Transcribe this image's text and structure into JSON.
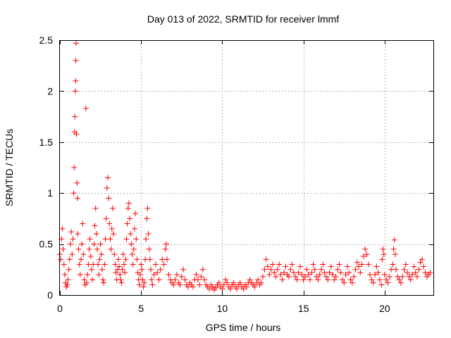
{
  "chart_data": {
    "type": "scatter",
    "title": "Day 013 of 2022, SRMTID for receiver lmmf",
    "xlabel": "GPS time / hours",
    "ylabel": "SRMTID / TECUs",
    "xlim": [
      0,
      23.0
    ],
    "ylim": [
      0,
      2.5
    ],
    "xticks": [
      0,
      5,
      10,
      15,
      20
    ],
    "xtick_labels": [
      "0",
      "5",
      "10",
      "15",
      "20"
    ],
    "yticks": [
      0,
      0.5,
      1,
      1.5,
      2,
      2.5
    ],
    "ytick_labels": [
      "0",
      "0.5",
      "1",
      "1.5",
      "2",
      "2.5"
    ],
    "grid": true,
    "marker": "+",
    "color": "#ff0000",
    "series": [
      {
        "name": "SRMTID",
        "points": [
          [
            0.0,
            0.4
          ],
          [
            0.05,
            0.35
          ],
          [
            0.1,
            0.55
          ],
          [
            0.15,
            0.65
          ],
          [
            0.2,
            0.45
          ],
          [
            0.25,
            0.3
          ],
          [
            0.3,
            0.2
          ],
          [
            0.35,
            0.12
          ],
          [
            0.4,
            0.08
          ],
          [
            0.45,
            0.1
          ],
          [
            0.5,
            0.15
          ],
          [
            0.55,
            0.25
          ],
          [
            0.6,
            0.35
          ],
          [
            0.65,
            0.5
          ],
          [
            0.7,
            0.62
          ],
          [
            0.75,
            0.4
          ],
          [
            0.8,
            0.55
          ],
          [
            0.85,
            1.0
          ],
          [
            0.88,
            1.25
          ],
          [
            0.9,
            1.6
          ],
          [
            0.92,
            1.75
          ],
          [
            0.95,
            2.0
          ],
          [
            0.97,
            2.1
          ],
          [
            0.98,
            2.3
          ],
          [
            1.0,
            2.47
          ],
          [
            1.02,
            1.58
          ],
          [
            1.05,
            1.1
          ],
          [
            1.08,
            0.95
          ],
          [
            1.1,
            0.6
          ],
          [
            1.15,
            0.45
          ],
          [
            1.2,
            0.3
          ],
          [
            1.25,
            0.2
          ],
          [
            1.3,
            0.35
          ],
          [
            1.35,
            0.5
          ],
          [
            1.4,
            0.7
          ],
          [
            1.45,
            0.4
          ],
          [
            1.5,
            0.15
          ],
          [
            1.55,
            0.1
          ],
          [
            1.6,
            1.83
          ],
          [
            1.65,
            0.12
          ],
          [
            1.7,
            0.2
          ],
          [
            1.75,
            0.3
          ],
          [
            1.8,
            0.45
          ],
          [
            1.85,
            0.55
          ],
          [
            1.9,
            0.38
          ],
          [
            1.95,
            0.25
          ],
          [
            2.0,
            0.15
          ],
          [
            2.05,
            0.3
          ],
          [
            2.1,
            0.5
          ],
          [
            2.15,
            0.68
          ],
          [
            2.2,
            0.85
          ],
          [
            2.25,
            0.6
          ],
          [
            2.3,
            0.45
          ],
          [
            2.35,
            0.3
          ],
          [
            2.4,
            0.2
          ],
          [
            2.45,
            0.35
          ],
          [
            2.5,
            0.5
          ],
          [
            2.55,
            0.4
          ],
          [
            2.6,
            0.25
          ],
          [
            2.65,
            0.15
          ],
          [
            2.7,
            0.12
          ],
          [
            2.75,
            0.3
          ],
          [
            2.8,
            0.55
          ],
          [
            2.85,
            0.75
          ],
          [
            2.9,
            1.05
          ],
          [
            2.95,
            1.15
          ],
          [
            3.0,
            0.95
          ],
          [
            3.05,
            0.7
          ],
          [
            3.1,
            0.55
          ],
          [
            3.15,
            0.45
          ],
          [
            3.2,
            0.65
          ],
          [
            3.25,
            0.85
          ],
          [
            3.3,
            0.6
          ],
          [
            3.35,
            0.4
          ],
          [
            3.4,
            0.3
          ],
          [
            3.45,
            0.22
          ],
          [
            3.5,
            0.15
          ],
          [
            3.55,
            0.25
          ],
          [
            3.6,
            0.35
          ],
          [
            3.65,
            0.28
          ],
          [
            3.7,
            0.2
          ],
          [
            3.75,
            0.15
          ],
          [
            3.8,
            0.12
          ],
          [
            3.85,
            0.25
          ],
          [
            3.9,
            0.4
          ],
          [
            3.95,
            0.3
          ],
          [
            4.0,
            0.22
          ],
          [
            4.05,
            0.35
          ],
          [
            4.1,
            0.55
          ],
          [
            4.15,
            0.7
          ],
          [
            4.2,
            0.85
          ],
          [
            4.25,
            0.9
          ],
          [
            4.3,
            0.75
          ],
          [
            4.35,
            0.6
          ],
          [
            4.4,
            0.5
          ],
          [
            4.45,
            0.4
          ],
          [
            4.5,
            0.3
          ],
          [
            4.55,
            0.45
          ],
          [
            4.6,
            0.65
          ],
          [
            4.65,
            0.8
          ],
          [
            4.7,
            0.55
          ],
          [
            4.75,
            0.35
          ],
          [
            4.8,
            0.22
          ],
          [
            4.85,
            0.15
          ],
          [
            4.9,
            0.1
          ],
          [
            4.95,
            0.2
          ],
          [
            5.0,
            0.3
          ],
          [
            5.05,
            0.25
          ],
          [
            5.1,
            0.15
          ],
          [
            5.15,
            0.08
          ],
          [
            5.2,
            0.12
          ],
          [
            5.25,
            0.35
          ],
          [
            5.3,
            0.55
          ],
          [
            5.35,
            0.75
          ],
          [
            5.4,
            0.85
          ],
          [
            5.45,
            0.6
          ],
          [
            5.5,
            0.45
          ],
          [
            5.55,
            0.35
          ],
          [
            5.6,
            0.25
          ],
          [
            5.65,
            0.15
          ],
          [
            5.7,
            0.1
          ],
          [
            5.8,
            0.2
          ],
          [
            5.9,
            0.3
          ],
          [
            6.0,
            0.22
          ],
          [
            6.1,
            0.15
          ],
          [
            6.2,
            0.25
          ],
          [
            6.3,
            0.35
          ],
          [
            6.4,
            0.3
          ],
          [
            6.5,
            0.45
          ],
          [
            6.55,
            0.5
          ],
          [
            6.6,
            0.35
          ],
          [
            6.7,
            0.2
          ],
          [
            6.8,
            0.15
          ],
          [
            6.9,
            0.12
          ],
          [
            7.0,
            0.1
          ],
          [
            7.1,
            0.15
          ],
          [
            7.2,
            0.2
          ],
          [
            7.3,
            0.12
          ],
          [
            7.4,
            0.1
          ],
          [
            7.5,
            0.18
          ],
          [
            7.6,
            0.25
          ],
          [
            7.7,
            0.15
          ],
          [
            7.8,
            0.1
          ],
          [
            7.9,
            0.08
          ],
          [
            8.0,
            0.12
          ],
          [
            8.1,
            0.1
          ],
          [
            8.2,
            0.08
          ],
          [
            8.3,
            0.15
          ],
          [
            8.4,
            0.2
          ],
          [
            8.5,
            0.15
          ],
          [
            8.6,
            0.1
          ],
          [
            8.7,
            0.18
          ],
          [
            8.8,
            0.25
          ],
          [
            8.9,
            0.15
          ],
          [
            9.0,
            0.1
          ],
          [
            9.1,
            0.08
          ],
          [
            9.2,
            0.06
          ],
          [
            9.3,
            0.1
          ],
          [
            9.4,
            0.08
          ],
          [
            9.5,
            0.05
          ],
          [
            9.6,
            0.07
          ],
          [
            9.7,
            0.1
          ],
          [
            9.8,
            0.12
          ],
          [
            9.9,
            0.08
          ],
          [
            10.0,
            0.06
          ],
          [
            10.1,
            0.1
          ],
          [
            10.2,
            0.15
          ],
          [
            10.3,
            0.12
          ],
          [
            10.4,
            0.08
          ],
          [
            10.5,
            0.06
          ],
          [
            10.6,
            0.1
          ],
          [
            10.7,
            0.12
          ],
          [
            10.8,
            0.08
          ],
          [
            10.9,
            0.06
          ],
          [
            11.0,
            0.1
          ],
          [
            11.1,
            0.12
          ],
          [
            11.2,
            0.08
          ],
          [
            11.3,
            0.06
          ],
          [
            11.4,
            0.1
          ],
          [
            11.5,
            0.08
          ],
          [
            11.6,
            0.12
          ],
          [
            11.7,
            0.15
          ],
          [
            11.8,
            0.12
          ],
          [
            11.9,
            0.1
          ],
          [
            12.0,
            0.08
          ],
          [
            12.1,
            0.12
          ],
          [
            12.2,
            0.15
          ],
          [
            12.3,
            0.1
          ],
          [
            12.4,
            0.12
          ],
          [
            12.5,
            0.18
          ],
          [
            12.6,
            0.25
          ],
          [
            12.7,
            0.35
          ],
          [
            12.8,
            0.28
          ],
          [
            12.9,
            0.2
          ],
          [
            13.0,
            0.25
          ],
          [
            13.1,
            0.3
          ],
          [
            13.2,
            0.22
          ],
          [
            13.3,
            0.18
          ],
          [
            13.4,
            0.25
          ],
          [
            13.5,
            0.3
          ],
          [
            13.6,
            0.2
          ],
          [
            13.7,
            0.15
          ],
          [
            13.8,
            0.22
          ],
          [
            13.9,
            0.28
          ],
          [
            14.0,
            0.2
          ],
          [
            14.1,
            0.18
          ],
          [
            14.2,
            0.25
          ],
          [
            14.3,
            0.3
          ],
          [
            14.4,
            0.22
          ],
          [
            14.5,
            0.18
          ],
          [
            14.6,
            0.15
          ],
          [
            14.7,
            0.22
          ],
          [
            14.8,
            0.28
          ],
          [
            14.9,
            0.2
          ],
          [
            15.0,
            0.15
          ],
          [
            15.1,
            0.18
          ],
          [
            15.2,
            0.25
          ],
          [
            15.3,
            0.2
          ],
          [
            15.4,
            0.15
          ],
          [
            15.5,
            0.22
          ],
          [
            15.6,
            0.3
          ],
          [
            15.7,
            0.25
          ],
          [
            15.8,
            0.18
          ],
          [
            15.9,
            0.15
          ],
          [
            16.0,
            0.2
          ],
          [
            16.1,
            0.25
          ],
          [
            16.2,
            0.3
          ],
          [
            16.3,
            0.22
          ],
          [
            16.4,
            0.18
          ],
          [
            16.5,
            0.15
          ],
          [
            16.6,
            0.22
          ],
          [
            16.7,
            0.28
          ],
          [
            16.8,
            0.2
          ],
          [
            16.9,
            0.15
          ],
          [
            17.0,
            0.18
          ],
          [
            17.1,
            0.25
          ],
          [
            17.2,
            0.3
          ],
          [
            17.3,
            0.22
          ],
          [
            17.4,
            0.15
          ],
          [
            17.5,
            0.12
          ],
          [
            17.6,
            0.2
          ],
          [
            17.7,
            0.28
          ],
          [
            17.8,
            0.22
          ],
          [
            17.9,
            0.15
          ],
          [
            18.0,
            0.12
          ],
          [
            18.1,
            0.18
          ],
          [
            18.2,
            0.25
          ],
          [
            18.3,
            0.32
          ],
          [
            18.4,
            0.28
          ],
          [
            18.5,
            0.22
          ],
          [
            18.6,
            0.3
          ],
          [
            18.7,
            0.38
          ],
          [
            18.8,
            0.45
          ],
          [
            18.9,
            0.4
          ],
          [
            19.0,
            0.3
          ],
          [
            19.1,
            0.2
          ],
          [
            19.2,
            0.15
          ],
          [
            19.3,
            0.12
          ],
          [
            19.4,
            0.2
          ],
          [
            19.5,
            0.28
          ],
          [
            19.6,
            0.22
          ],
          [
            19.7,
            0.15
          ],
          [
            19.8,
            0.1
          ],
          [
            19.85,
            0.35
          ],
          [
            19.9,
            0.45
          ],
          [
            19.95,
            0.4
          ],
          [
            20.0,
            0.2
          ],
          [
            20.1,
            0.15
          ],
          [
            20.2,
            0.12
          ],
          [
            20.3,
            0.18
          ],
          [
            20.4,
            0.25
          ],
          [
            20.5,
            0.3
          ],
          [
            20.55,
            0.45
          ],
          [
            20.6,
            0.54
          ],
          [
            20.65,
            0.4
          ],
          [
            20.7,
            0.25
          ],
          [
            20.8,
            0.18
          ],
          [
            20.9,
            0.15
          ],
          [
            21.0,
            0.12
          ],
          [
            21.1,
            0.18
          ],
          [
            21.2,
            0.25
          ],
          [
            21.3,
            0.3
          ],
          [
            21.4,
            0.22
          ],
          [
            21.5,
            0.18
          ],
          [
            21.6,
            0.15
          ],
          [
            21.7,
            0.2
          ],
          [
            21.8,
            0.28
          ],
          [
            21.9,
            0.22
          ],
          [
            22.0,
            0.18
          ],
          [
            22.1,
            0.25
          ],
          [
            22.2,
            0.32
          ],
          [
            22.3,
            0.35
          ],
          [
            22.4,
            0.28
          ],
          [
            22.5,
            0.22
          ],
          [
            22.6,
            0.18
          ],
          [
            22.7,
            0.2
          ],
          [
            22.8,
            0.22
          ]
        ]
      }
    ]
  }
}
